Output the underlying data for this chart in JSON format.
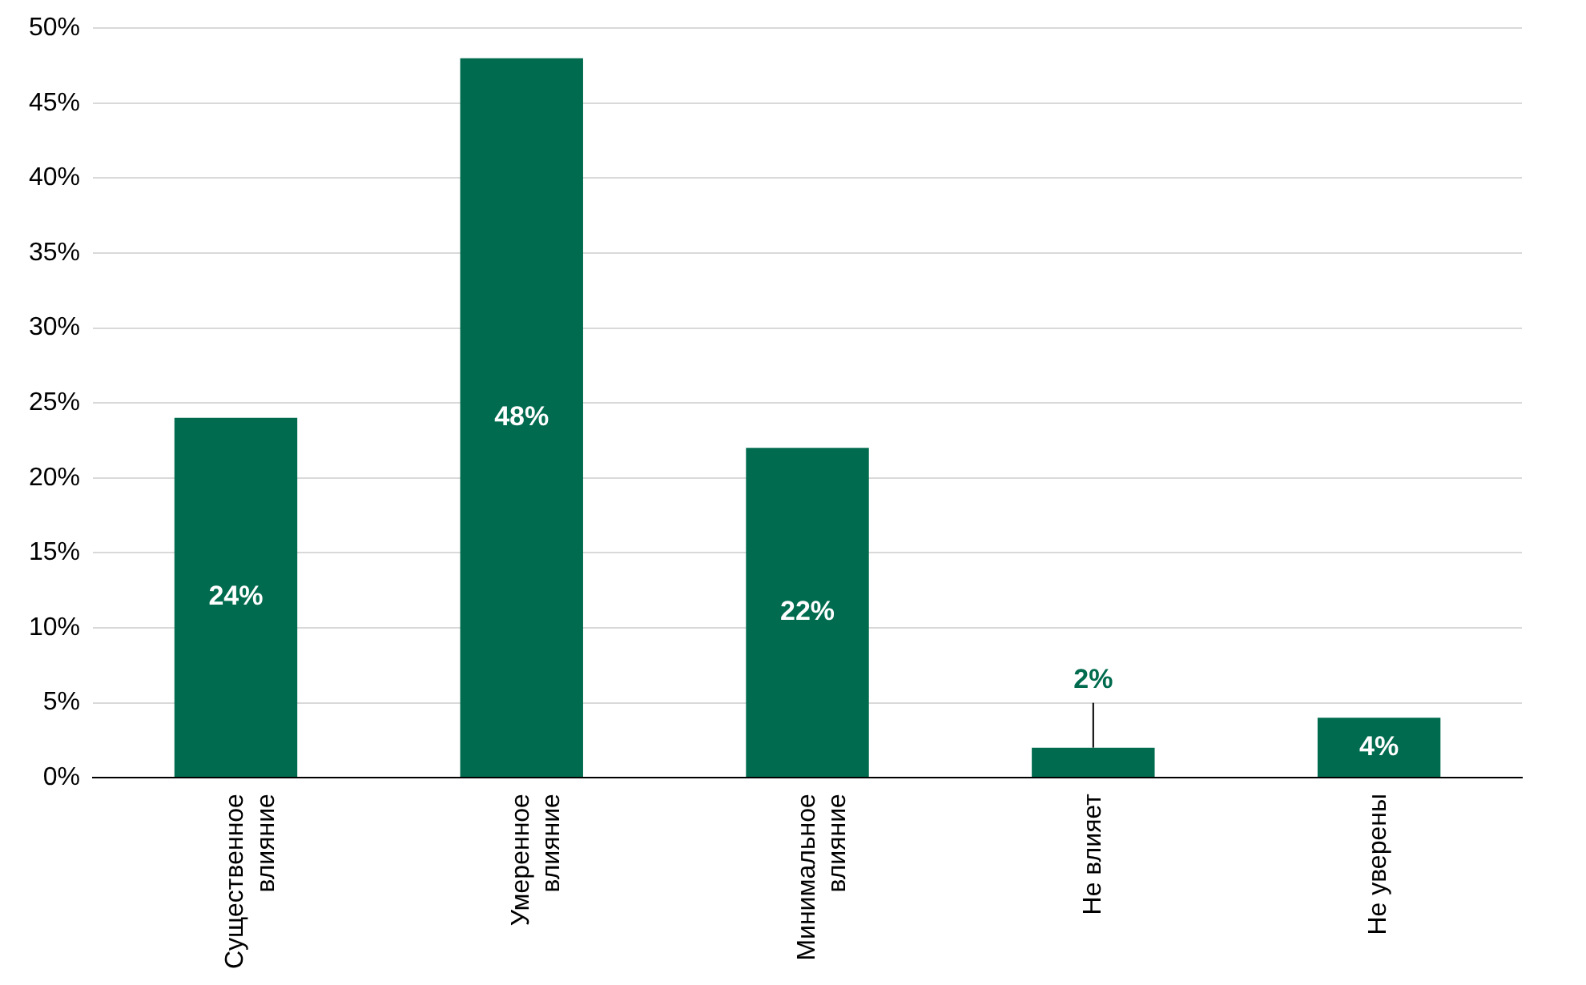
{
  "chart_data": {
    "type": "bar",
    "categories": [
      "Существенное влияние",
      "Умеренное влияние",
      "Минимальное влияние",
      "Не влияет",
      "Не уверены"
    ],
    "values": [
      24,
      48,
      22,
      2,
      4
    ],
    "value_labels": [
      "24%",
      "48%",
      "22%",
      "2%",
      "4%"
    ],
    "color": "#006b4e",
    "ylim": [
      0,
      50
    ],
    "yticks": [
      {
        "value": 0,
        "label": "0%"
      },
      {
        "value": 5,
        "label": "5%"
      },
      {
        "value": 10,
        "label": "10%"
      },
      {
        "value": 15,
        "label": "15%"
      },
      {
        "value": 20,
        "label": "20%"
      },
      {
        "value": 25,
        "label": "25%"
      },
      {
        "value": 30,
        "label": "30%"
      },
      {
        "value": 35,
        "label": "35%"
      },
      {
        "value": 40,
        "label": "40%"
      },
      {
        "value": 45,
        "label": "45%"
      },
      {
        "value": 50,
        "label": "50%"
      }
    ],
    "grid": "y",
    "legend": false
  }
}
